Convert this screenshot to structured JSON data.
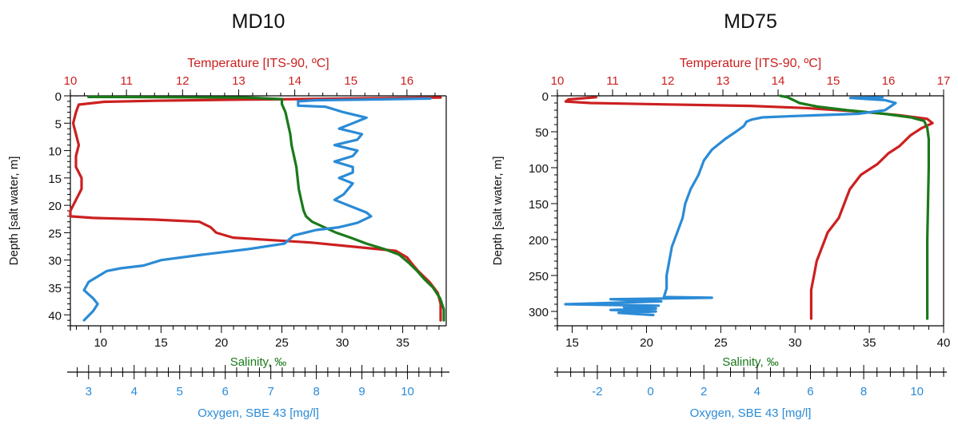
{
  "chart_data": [
    {
      "type": "line",
      "title": "MD10",
      "ylabel": "Depth [salt water, m]",
      "ylim": [
        0,
        42
      ],
      "y_ticks": [
        0,
        5,
        10,
        15,
        20,
        25,
        30,
        35,
        40
      ],
      "colors": {
        "temperature": "#cc2020",
        "salinity": "#1a7a1a",
        "oxygen": "#2b8bd6"
      },
      "axes": {
        "temperature": {
          "label": "Temperature [ITS-90, ºC]",
          "range": [
            10,
            16.7
          ],
          "ticks": [
            10,
            11,
            12,
            13,
            14,
            15,
            16
          ]
        },
        "salinity": {
          "label": "Salinity, ‰",
          "range": [
            7.5,
            38.6
          ],
          "ticks": [
            10,
            15,
            20,
            25,
            30,
            35
          ]
        },
        "oxygen": {
          "label": "Oxygen, SBE 43 [mg/l]",
          "range": [
            2.6,
            10.85
          ],
          "ticks": [
            3,
            4,
            5,
            6,
            7,
            8,
            9,
            10
          ]
        }
      },
      "series": [
        {
          "key": "temperature",
          "axis": "temperature",
          "points": [
            [
              16.6,
              0.3
            ],
            [
              15.0,
              0.5
            ],
            [
              13.0,
              0.7
            ],
            [
              11.5,
              0.9
            ],
            [
              10.6,
              1.1
            ],
            [
              10.15,
              1.6
            ],
            [
              10.1,
              3
            ],
            [
              10.05,
              5
            ],
            [
              10.1,
              7
            ],
            [
              10.15,
              9
            ],
            [
              10.1,
              11
            ],
            [
              10.1,
              13
            ],
            [
              10.2,
              15
            ],
            [
              10.2,
              17
            ],
            [
              10.1,
              19
            ],
            [
              10.0,
              21
            ],
            [
              10.0,
              22
            ],
            [
              10.4,
              22.3
            ],
            [
              11.5,
              22.6
            ],
            [
              12.3,
              23
            ],
            [
              12.5,
              24
            ],
            [
              12.6,
              25
            ],
            [
              12.9,
              25.9
            ],
            [
              13.5,
              26.3
            ],
            [
              14.3,
              26.8
            ],
            [
              15.0,
              27.5
            ],
            [
              15.8,
              28.3
            ],
            [
              16.0,
              29.5
            ],
            [
              16.1,
              30.8
            ],
            [
              16.2,
              32
            ],
            [
              16.4,
              34
            ],
            [
              16.55,
              36
            ],
            [
              16.6,
              38
            ],
            [
              16.6,
              41
            ]
          ]
        },
        {
          "key": "salinity",
          "axis": "salinity",
          "points": [
            [
              9.0,
              0.2
            ],
            [
              22.0,
              0.3
            ],
            [
              25.0,
              0.6
            ],
            [
              25.0,
              1.5
            ],
            [
              25.3,
              3
            ],
            [
              25.5,
              5
            ],
            [
              25.7,
              7
            ],
            [
              25.8,
              9
            ],
            [
              26.0,
              11
            ],
            [
              26.2,
              13
            ],
            [
              26.3,
              15
            ],
            [
              26.4,
              17
            ],
            [
              26.6,
              19
            ],
            [
              26.8,
              21
            ],
            [
              27.0,
              22
            ],
            [
              27.5,
              23
            ],
            [
              28.5,
              24
            ],
            [
              29.5,
              25
            ],
            [
              30.8,
              26
            ],
            [
              32.0,
              27
            ],
            [
              33.5,
              28
            ],
            [
              34.7,
              29
            ],
            [
              35.5,
              30.5
            ],
            [
              36.2,
              32
            ],
            [
              36.8,
              33.5
            ],
            [
              37.5,
              35
            ],
            [
              38.1,
              37
            ],
            [
              38.4,
              39
            ],
            [
              38.4,
              41
            ]
          ]
        },
        {
          "key": "oxygen",
          "axis": "oxygen",
          "points": [
            [
              10.5,
              0.5
            ],
            [
              9.0,
              0.7
            ],
            [
              8.0,
              0.8
            ],
            [
              7.6,
              1.0
            ],
            [
              7.6,
              1.8
            ],
            [
              8.2,
              2
            ],
            [
              8.6,
              3
            ],
            [
              9.1,
              4
            ],
            [
              8.8,
              5
            ],
            [
              8.5,
              6
            ],
            [
              9.0,
              7
            ],
            [
              8.9,
              8
            ],
            [
              8.4,
              9
            ],
            [
              8.9,
              10
            ],
            [
              8.8,
              11
            ],
            [
              8.4,
              12
            ],
            [
              8.8,
              13
            ],
            [
              8.8,
              14
            ],
            [
              8.5,
              15
            ],
            [
              8.8,
              16
            ],
            [
              8.6,
              18
            ],
            [
              8.4,
              19
            ],
            [
              8.7,
              20
            ],
            [
              9.1,
              21.3
            ],
            [
              9.2,
              22
            ],
            [
              8.9,
              23.2
            ],
            [
              8.5,
              24
            ],
            [
              8.0,
              24.5
            ],
            [
              7.5,
              25.5
            ],
            [
              7.3,
              27
            ],
            [
              6.5,
              28
            ],
            [
              5.5,
              29
            ],
            [
              4.6,
              30
            ],
            [
              4.2,
              31
            ],
            [
              3.7,
              31.5
            ],
            [
              3.4,
              32
            ],
            [
              3.2,
              33
            ],
            [
              3.0,
              34
            ],
            [
              2.9,
              35.5
            ],
            [
              3.1,
              37
            ],
            [
              3.2,
              38
            ],
            [
              3.1,
              39.3
            ],
            [
              2.9,
              41
            ]
          ]
        }
      ]
    },
    {
      "type": "line",
      "title": "MD75",
      "ylabel": "Depth [salt water, m]",
      "ylim": [
        0,
        320
      ],
      "y_ticks": [
        0,
        50,
        100,
        150,
        200,
        250,
        300
      ],
      "colors": {
        "temperature": "#cc2020",
        "salinity": "#1a7a1a",
        "oxygen": "#2b8bd6"
      },
      "axes": {
        "temperature": {
          "label": "Temperature [ITS-90, ºC]",
          "range": [
            10,
            17
          ],
          "ticks": [
            10,
            11,
            12,
            13,
            14,
            15,
            16,
            17
          ]
        },
        "salinity": {
          "label": "Salinity, ‰",
          "range": [
            14,
            40
          ],
          "ticks": [
            15,
            20,
            25,
            30,
            35,
            40
          ]
        },
        "oxygen": {
          "label": "Oxygen, SBE 43 [mg/l]",
          "range": [
            -3.5,
            11
          ],
          "ticks": [
            -2,
            0,
            2,
            4,
            6,
            8,
            10
          ]
        }
      },
      "series": [
        {
          "key": "temperature",
          "axis": "temperature",
          "points": [
            [
              10.7,
              2
            ],
            [
              10.2,
              5
            ],
            [
              10.15,
              8
            ],
            [
              10.6,
              10
            ],
            [
              12.0,
              12
            ],
            [
              13.5,
              14
            ],
            [
              14.5,
              17
            ],
            [
              15.5,
              22
            ],
            [
              16.2,
              27
            ],
            [
              16.7,
              32
            ],
            [
              16.8,
              38
            ],
            [
              16.6,
              45
            ],
            [
              16.4,
              55
            ],
            [
              16.2,
              70
            ],
            [
              16.0,
              80
            ],
            [
              15.8,
              95
            ],
            [
              15.5,
              110
            ],
            [
              15.3,
              130
            ],
            [
              15.2,
              150
            ],
            [
              15.1,
              170
            ],
            [
              14.9,
              190
            ],
            [
              14.8,
              210
            ],
            [
              14.7,
              230
            ],
            [
              14.65,
              250
            ],
            [
              14.6,
              270
            ],
            [
              14.6,
              290
            ],
            [
              14.6,
              310
            ]
          ]
        },
        {
          "key": "salinity",
          "axis": "salinity",
          "points": [
            [
              29.0,
              0
            ],
            [
              29.5,
              2
            ],
            [
              29.8,
              5
            ],
            [
              30.3,
              10
            ],
            [
              31.5,
              15
            ],
            [
              33.5,
              20
            ],
            [
              36.0,
              25
            ],
            [
              37.8,
              30
            ],
            [
              38.7,
              35
            ],
            [
              38.9,
              45
            ],
            [
              39.0,
              60
            ],
            [
              39.0,
              100
            ],
            [
              38.9,
              200
            ],
            [
              38.9,
              310
            ]
          ]
        },
        {
          "key": "oxygen",
          "axis": "oxygen",
          "points": [
            [
              8.7,
              2
            ],
            [
              7.5,
              3
            ],
            [
              8.8,
              6
            ],
            [
              9.2,
              10
            ],
            [
              9.0,
              15
            ],
            [
              8.8,
              20
            ],
            [
              7.8,
              25
            ],
            [
              5.5,
              28
            ],
            [
              4.2,
              30
            ],
            [
              3.8,
              33
            ],
            [
              3.6,
              36
            ],
            [
              3.5,
              42
            ],
            [
              3.2,
              50
            ],
            [
              2.8,
              60
            ],
            [
              2.3,
              75
            ],
            [
              2.0,
              90
            ],
            [
              1.8,
              110
            ],
            [
              1.5,
              130
            ],
            [
              1.3,
              150
            ],
            [
              1.2,
              170
            ],
            [
              1.0,
              190
            ],
            [
              0.8,
              210
            ],
            [
              0.7,
              230
            ],
            [
              0.6,
              250
            ],
            [
              0.6,
              268
            ],
            [
              0.5,
              280
            ],
            [
              2.3,
              281
            ],
            [
              0.5,
              282
            ],
            [
              -1.5,
              283
            ],
            [
              0.4,
              286
            ],
            [
              -3.2,
              290
            ],
            [
              0.3,
              292
            ],
            [
              -1.0,
              294
            ],
            [
              0.2,
              296
            ],
            [
              -1.5,
              298
            ],
            [
              0.2,
              300
            ],
            [
              -1.2,
              302
            ],
            [
              0.1,
              305
            ]
          ]
        }
      ]
    }
  ]
}
